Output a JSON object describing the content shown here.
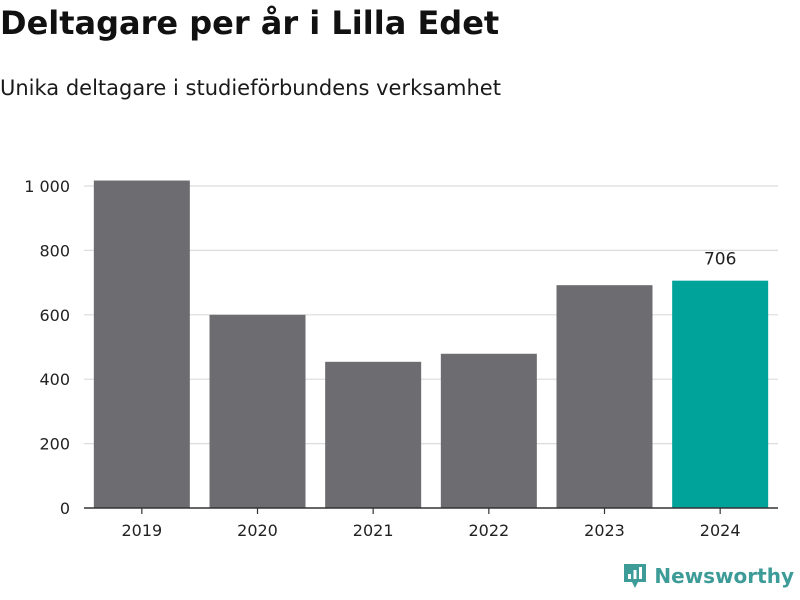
{
  "chart_data": {
    "type": "bar",
    "title": "Deltagare per år i Lilla Edet",
    "subtitle": "Unika deltagare i studieförbundens verksamhet",
    "xlabel": "",
    "ylabel": "",
    "categories": [
      "2019",
      "2020",
      "2021",
      "2022",
      "2023",
      "2024"
    ],
    "values": [
      1017,
      600,
      454,
      479,
      692,
      706
    ],
    "ylim": [
      0,
      1000
    ],
    "yticks": [
      {
        "value": 0,
        "label": "0"
      },
      {
        "value": 200,
        "label": "200"
      },
      {
        "value": 400,
        "label": "400"
      },
      {
        "value": 600,
        "label": "600"
      },
      {
        "value": 800,
        "label": "800"
      },
      {
        "value": 1000,
        "label": "1 000"
      }
    ],
    "grid": true,
    "highlight_index": 5,
    "data_labels": [
      {
        "index": 5,
        "text": "706"
      }
    ],
    "colors": {
      "bar": "#6d6c71",
      "highlight": "#00a39a",
      "grid": "#dcdcdc",
      "axis": "#333333"
    }
  },
  "branding": {
    "name": "Newsworthy",
    "icon": "newsworthy-logo-icon",
    "color": "#3d9b98"
  }
}
